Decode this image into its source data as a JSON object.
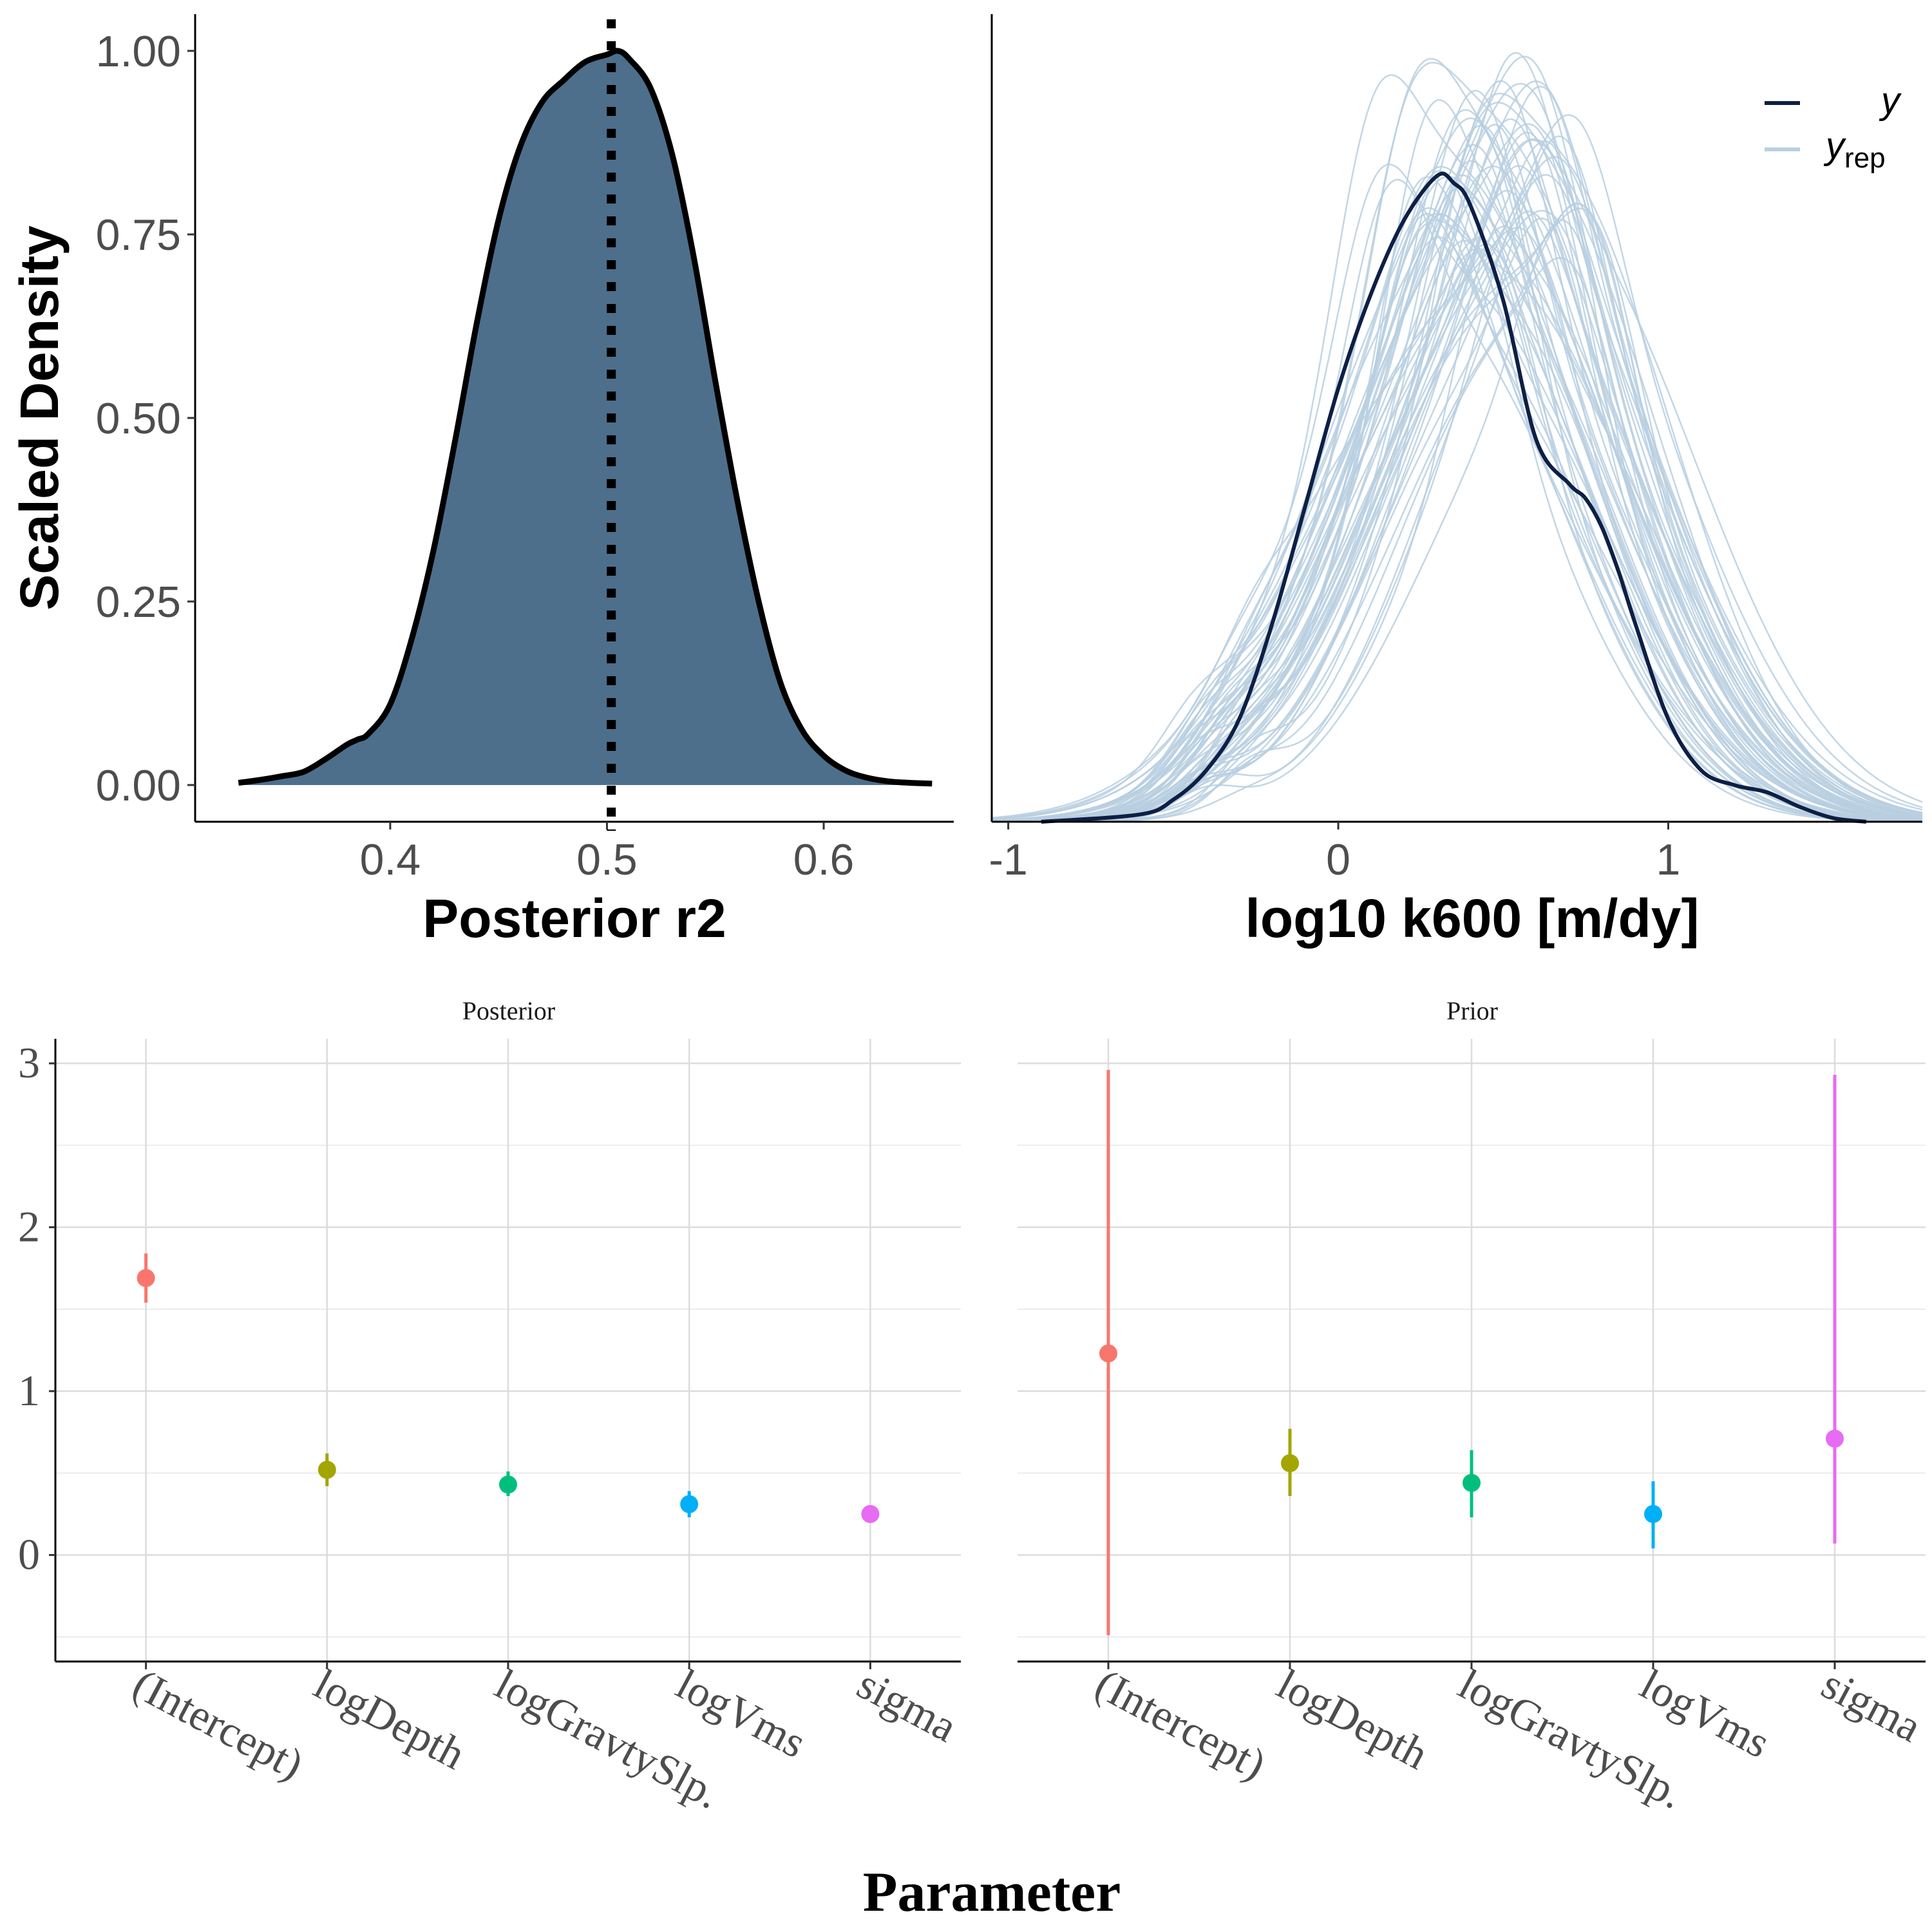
{
  "chart_data": [
    {
      "type": "area",
      "panel": "top-left",
      "xlabel": "Posterior r2",
      "ylabel": "Scaled Density",
      "xlim": [
        0.31,
        0.66
      ],
      "ylim": [
        -0.05,
        1.05
      ],
      "xticks": [
        "0.4",
        "0.5",
        "0.6"
      ],
      "xtick_values": [
        0.4,
        0.5,
        0.6
      ],
      "yticks": [
        "0.00",
        "0.25",
        "0.50",
        "0.75",
        "1.00"
      ],
      "ytick_values": [
        0,
        0.25,
        0.5,
        0.75,
        1.0
      ],
      "fill_color": "#4d6f8c",
      "vline": {
        "x": 0.502,
        "style": "dotted"
      },
      "x": [
        0.33,
        0.34,
        0.35,
        0.36,
        0.37,
        0.38,
        0.385,
        0.39,
        0.4,
        0.41,
        0.42,
        0.43,
        0.44,
        0.45,
        0.46,
        0.47,
        0.48,
        0.49,
        0.5,
        0.505,
        0.51,
        0.52,
        0.53,
        0.54,
        0.55,
        0.56,
        0.57,
        0.58,
        0.59,
        0.6,
        0.61,
        0.62,
        0.63,
        0.64,
        0.65
      ],
      "y": [
        0.003,
        0.007,
        0.012,
        0.018,
        0.035,
        0.055,
        0.062,
        0.07,
        0.11,
        0.2,
        0.32,
        0.47,
        0.63,
        0.77,
        0.87,
        0.93,
        0.96,
        0.985,
        0.995,
        1.0,
        0.99,
        0.95,
        0.86,
        0.72,
        0.55,
        0.39,
        0.25,
        0.14,
        0.075,
        0.04,
        0.02,
        0.01,
        0.005,
        0.003,
        0.002
      ]
    },
    {
      "type": "line",
      "panel": "top-right",
      "xlabel": "log10 k600 [m/dy]",
      "xlim": [
        -1.05,
        1.77
      ],
      "ylim": [
        0,
        1.1
      ],
      "xticks": [
        "-1",
        "0",
        "1"
      ],
      "xtick_values": [
        -1,
        0,
        1
      ],
      "legend": {
        "position": "top-right",
        "entries": [
          {
            "label": "y",
            "color": "#0d1f45"
          },
          {
            "label": "y",
            "subscript": "rep",
            "color": "#b9cfe0"
          }
        ]
      },
      "series": [
        {
          "name": "y",
          "color": "#0d1f45",
          "x": [
            -0.9,
            -0.6,
            -0.5,
            -0.4,
            -0.3,
            -0.2,
            -0.1,
            0.0,
            0.1,
            0.2,
            0.3,
            0.35,
            0.4,
            0.5,
            0.6,
            0.7,
            0.75,
            0.8,
            0.85,
            0.9,
            1.0,
            1.1,
            1.2,
            1.3,
            1.4,
            1.5,
            1.6
          ],
          "y": [
            0.0,
            0.01,
            0.03,
            0.07,
            0.14,
            0.27,
            0.43,
            0.59,
            0.72,
            0.82,
            0.88,
            0.87,
            0.84,
            0.71,
            0.52,
            0.46,
            0.44,
            0.4,
            0.34,
            0.27,
            0.14,
            0.07,
            0.05,
            0.04,
            0.02,
            0.005,
            0.0
          ]
        }
      ],
      "replicates": {
        "name": "y_rep",
        "color": "#b9cfe0",
        "count": 60,
        "peak_x_range": [
          0.3,
          0.65
        ],
        "peak_y_range": [
          0.75,
          1.05
        ],
        "x_range": [
          -1.05,
          1.77
        ]
      }
    },
    {
      "type": "scatter",
      "panel": "bottom-left",
      "strip_title": "Posterior",
      "xlabel": "Parameter",
      "categories": [
        "(Intercept)",
        "logDepth",
        "logGravtySlp.",
        "logVms",
        "sigma"
      ],
      "ylim": [
        -0.65,
        3.15
      ],
      "yticks": [
        "0",
        "1",
        "2",
        "3"
      ],
      "ytick_values": [
        0,
        1,
        2,
        3
      ],
      "estimates": [
        1.69,
        0.52,
        0.43,
        0.31,
        0.25
      ],
      "lower": [
        1.54,
        0.42,
        0.36,
        0.23,
        0.24
      ],
      "upper": [
        1.84,
        0.62,
        0.51,
        0.39,
        0.26
      ],
      "colors": [
        "#f8766d",
        "#a3a500",
        "#00bf7d",
        "#00b0f6",
        "#e76bf3"
      ]
    },
    {
      "type": "scatter",
      "panel": "bottom-right",
      "strip_title": "Prior",
      "categories": [
        "(Intercept)",
        "logDepth",
        "logGravtySlp.",
        "logVms",
        "sigma"
      ],
      "ylim": [
        -0.65,
        3.15
      ],
      "ytick_values": [
        0,
        1,
        2,
        3
      ],
      "estimates": [
        1.23,
        0.56,
        0.44,
        0.25,
        0.71
      ],
      "lower": [
        -0.49,
        0.36,
        0.23,
        0.04,
        0.07
      ],
      "upper": [
        2.96,
        0.77,
        0.64,
        0.45,
        2.93
      ],
      "colors": [
        "#f8766d",
        "#a3a500",
        "#00bf7d",
        "#00b0f6",
        "#e76bf3"
      ]
    }
  ]
}
